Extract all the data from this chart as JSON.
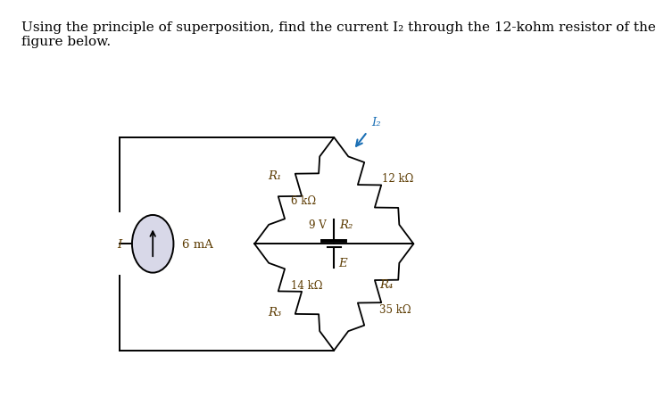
{
  "title_text": "Using the principle of superposition, find the current I₂ through the 12-kohm resistor of the\nfigure below.",
  "title_fontsize": 11,
  "bg_color": "#ffffff",
  "fig_width": 7.45,
  "fig_height": 5.53,
  "circuit": {
    "label_I": "I",
    "label_6mA": "6 mA",
    "label_R1": "R₁",
    "label_6kohm": "6 kΩ",
    "label_14kohm": "14 kΩ",
    "label_R3": "R₃",
    "label_12kohm": "12 kΩ",
    "label_35kohm": "35 kΩ",
    "label_R4": "R₄",
    "label_9V": "9 V",
    "label_R2": "R₂",
    "label_E": "E",
    "label_I2": "I₂",
    "text_color": "#5b3a00",
    "line_color": "#000000",
    "arrow_color": "#1a6fb5"
  }
}
